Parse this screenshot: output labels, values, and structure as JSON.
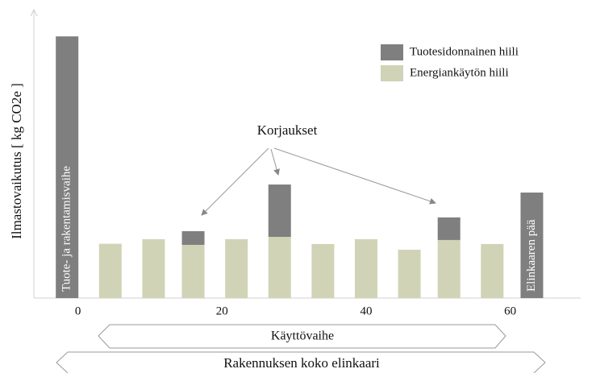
{
  "chart_data": {
    "type": "stacked_bar",
    "y_label": "Ilmastovaikutus [ kg CO2e ]",
    "x": [
      -1.5,
      4.5,
      10.5,
      16,
      22,
      28,
      34,
      40,
      46,
      51.5,
      57.5,
      63
    ],
    "series": [
      {
        "name": "Energiankäytön hiili",
        "color": "#d0d3b6",
        "values": [
          null,
          19,
          20.6,
          18.6,
          20.6,
          21.4,
          18.9,
          20.6,
          16.9,
          20.3,
          18.9,
          null
        ]
      },
      {
        "name": "Tuotesidonnainen hiili",
        "color": "#7f7f7f",
        "values": [
          91.5,
          null,
          null,
          4.8,
          null,
          18.3,
          null,
          null,
          null,
          7.9,
          null,
          36.9
        ]
      }
    ],
    "bar_labels": [
      "Tuote- ja rakentamisvaihe",
      null,
      null,
      null,
      null,
      null,
      null,
      null,
      null,
      null,
      null,
      "Elinkaaren pää"
    ],
    "xlim": [
      -6,
      70
    ],
    "xticks": [
      0,
      20,
      40,
      60
    ],
    "ylim": [
      0,
      100
    ],
    "legend": "upper right",
    "annotation": "Korjaukset",
    "phases": [
      "Käyttövaihe",
      "Rakennuksen koko elinkaari"
    ]
  }
}
